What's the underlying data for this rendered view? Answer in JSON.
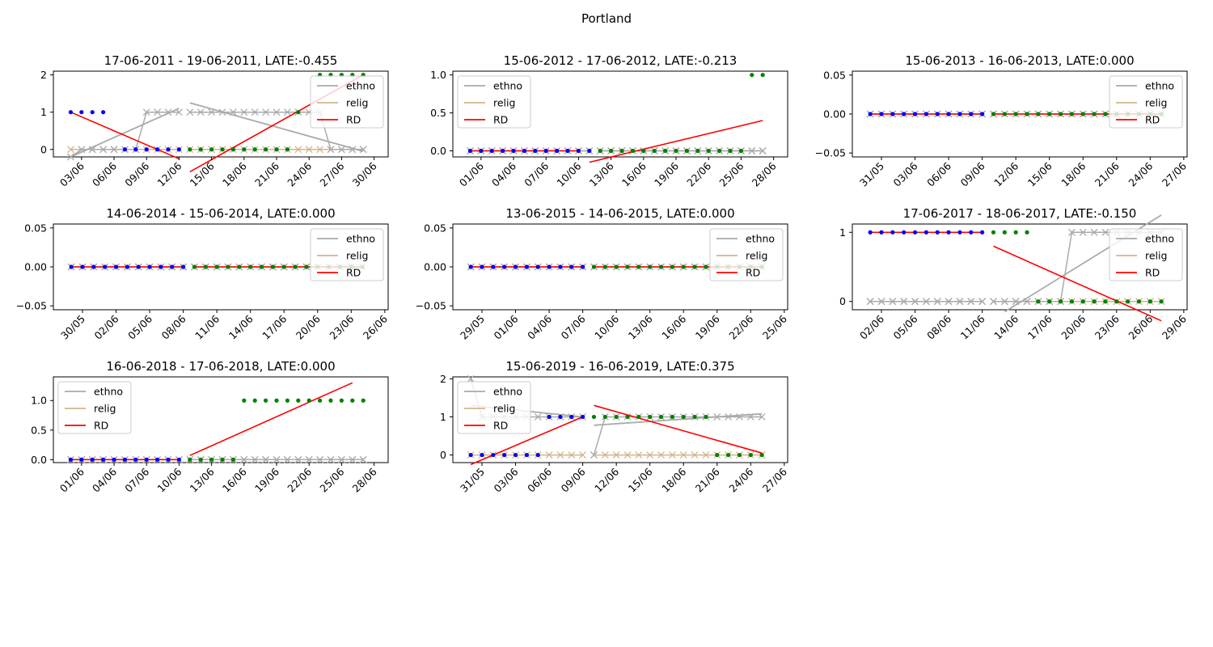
{
  "title": "Portland",
  "legend_labels": [
    "ethno",
    "relig",
    "RD"
  ],
  "colors": {
    "ethno": "#aaaaaa",
    "relig": "#d2b48c",
    "rd": "#ff0000",
    "dot_pre": "#0000ff",
    "dot_post": "#008000"
  },
  "chart_data": [
    {
      "type": "line",
      "title": "17-06-2011 - 19-06-2011, LATE:-0.455",
      "legend": "upper right",
      "start": "2011-06-02",
      "n": 28,
      "cutoff": "2011-06-13",
      "ylim": [
        -0.2,
        2.1
      ],
      "yticks": [
        0,
        1,
        2
      ],
      "yticklabels": [
        "0",
        "1",
        "2"
      ],
      "xticklabels": [
        "03/06",
        "06/06",
        "09/06",
        "12/06",
        "15/06",
        "18/06",
        "21/06",
        "24/06",
        "27/06",
        "30/06"
      ],
      "dots": [
        1,
        1,
        1,
        1,
        null,
        0,
        0,
        0,
        0,
        0,
        0,
        0,
        0,
        0,
        0,
        0,
        0,
        0,
        0,
        0,
        0,
        1,
        null,
        2,
        2,
        2,
        2,
        2
      ],
      "ethno": [
        -0.2,
        0,
        0,
        0,
        0,
        0,
        0,
        1,
        1,
        1,
        1,
        1,
        1,
        1,
        1,
        1,
        1,
        1,
        1,
        1,
        1,
        1,
        1,
        1,
        0,
        0,
        0,
        0
      ],
      "relig": [
        0,
        0,
        0,
        0,
        0,
        0,
        0,
        0,
        0,
        0,
        0,
        0,
        0,
        0,
        0,
        0,
        0,
        0,
        0,
        0,
        0,
        0,
        0,
        0,
        0,
        0,
        0,
        0
      ],
      "ethno_fit": [
        [
          0,
          -0.2
        ],
        [
          10,
          1.1
        ],
        [
          11,
          1.25
        ],
        [
          27,
          -0.05
        ]
      ],
      "rd_fit": [
        [
          0,
          1.0
        ],
        [
          10,
          -0.25
        ],
        [
          11,
          -0.6
        ],
        [
          27,
          2.0
        ]
      ]
    },
    {
      "type": "line",
      "title": "15-06-2012 - 17-06-2012, LATE:-0.213",
      "legend": "upper left",
      "start": "2012-05-30",
      "n": 28,
      "cutoff": "2012-06-11",
      "ylim": [
        -0.08,
        1.05
      ],
      "yticks": [
        0,
        0.5,
        1
      ],
      "yticklabels": [
        "0.0",
        "0.5",
        "1.0"
      ],
      "xticklabels": [
        "01/06",
        "04/06",
        "07/06",
        "10/06",
        "13/06",
        "16/06",
        "19/06",
        "22/06",
        "25/06",
        "28/06"
      ],
      "dots": [
        0,
        0,
        0,
        0,
        0,
        0,
        0,
        0,
        0,
        0,
        0,
        0,
        0,
        0,
        0,
        0,
        0,
        0,
        0,
        0,
        0,
        0,
        0,
        0,
        0,
        0,
        1,
        1
      ],
      "ethno": [
        0,
        0,
        0,
        0,
        0,
        0,
        0,
        0,
        0,
        0,
        0,
        0,
        0,
        0,
        0,
        0,
        0,
        0,
        0,
        0,
        0,
        0,
        0,
        0,
        0,
        0,
        0,
        0
      ],
      "relig": [
        0,
        0,
        0,
        0,
        0,
        0,
        0,
        0,
        0,
        0,
        0,
        0,
        0,
        0,
        0,
        0,
        0,
        0,
        0,
        0,
        0,
        0,
        0,
        0,
        0,
        0,
        0,
        0
      ],
      "rd_fit": [
        [
          0,
          0
        ],
        [
          10,
          0
        ],
        [
          11,
          -0.15
        ],
        [
          27,
          0.4
        ]
      ]
    },
    {
      "type": "line",
      "title": "15-06-2013 - 16-06-2013, LATE:0.000",
      "legend": "upper right",
      "start": "2013-05-31",
      "n": 27,
      "cutoff": "2013-06-11",
      "ylim": [
        -0.055,
        0.055
      ],
      "yticks": [
        -0.05,
        0,
        0.05
      ],
      "yticklabels": [
        "−0.05",
        "0.00",
        "0.05"
      ],
      "xticklabels": [
        "31/05",
        "03/06",
        "06/06",
        "09/06",
        "12/06",
        "15/06",
        "18/06",
        "21/06",
        "24/06",
        "27/06"
      ],
      "dots": [
        0,
        0,
        0,
        0,
        0,
        0,
        0,
        0,
        0,
        0,
        0,
        0,
        0,
        0,
        0,
        0,
        0,
        0,
        0,
        0,
        0,
        0,
        0,
        0,
        0,
        0,
        0
      ],
      "ethno": [
        0,
        0,
        0,
        0,
        0,
        0,
        0,
        0,
        0,
        0,
        0,
        0,
        0,
        0,
        0,
        0,
        0,
        0,
        0,
        0,
        0,
        0,
        0,
        0,
        0,
        0,
        0
      ],
      "relig": [
        0,
        0,
        0,
        0,
        0,
        0,
        0,
        0,
        0,
        0,
        0,
        0,
        0,
        0,
        0,
        0,
        0,
        0,
        0,
        0,
        0,
        0,
        0,
        0,
        0,
        0,
        0
      ],
      "rd_fit": [
        [
          0,
          0
        ],
        [
          10,
          0
        ],
        [
          11,
          0
        ],
        [
          26,
          0
        ]
      ]
    },
    {
      "type": "line",
      "title": "14-06-2014 - 15-06-2014, LATE:0.000",
      "legend": "upper right",
      "start": "2014-05-30",
      "n": 27,
      "cutoff": "2014-06-10",
      "ylim": [
        -0.055,
        0.055
      ],
      "yticks": [
        -0.05,
        0,
        0.05
      ],
      "yticklabels": [
        "−0.05",
        "0.00",
        "0.05"
      ],
      "xticklabels": [
        "30/05",
        "02/06",
        "05/06",
        "08/06",
        "11/06",
        "14/06",
        "17/06",
        "20/06",
        "23/06",
        "26/06"
      ],
      "dots": [
        0,
        0,
        0,
        0,
        0,
        0,
        0,
        0,
        0,
        0,
        0,
        0,
        0,
        0,
        0,
        0,
        0,
        0,
        0,
        0,
        0,
        0,
        0,
        0,
        0,
        0,
        0
      ],
      "ethno": [
        0,
        0,
        0,
        0,
        0,
        0,
        0,
        0,
        0,
        0,
        0,
        0,
        0,
        0,
        0,
        0,
        0,
        0,
        0,
        0,
        0,
        0,
        0,
        0,
        0,
        0,
        0
      ],
      "relig": [
        0,
        0,
        0,
        0,
        0,
        0,
        0,
        0,
        0,
        0,
        0,
        0,
        0,
        0,
        0,
        0,
        0,
        0,
        0,
        0,
        0,
        0,
        0,
        0,
        0,
        0,
        0
      ],
      "rd_fit": [
        [
          0,
          0
        ],
        [
          10,
          0
        ],
        [
          11,
          0
        ],
        [
          26,
          0
        ]
      ]
    },
    {
      "type": "line",
      "title": "13-06-2015 - 14-06-2015, LATE:0.000",
      "legend": "upper right",
      "start": "2015-05-29",
      "n": 27,
      "cutoff": "2015-06-09",
      "ylim": [
        -0.055,
        0.055
      ],
      "yticks": [
        -0.05,
        0,
        0.05
      ],
      "yticklabels": [
        "−0.05",
        "0.00",
        "0.05"
      ],
      "xticklabels": [
        "29/05",
        "01/06",
        "04/06",
        "07/06",
        "10/06",
        "13/06",
        "16/06",
        "19/06",
        "22/06",
        "25/06"
      ],
      "dots": [
        0,
        0,
        0,
        0,
        0,
        0,
        0,
        0,
        0,
        0,
        0,
        0,
        0,
        0,
        0,
        0,
        0,
        0,
        0,
        0,
        0,
        0,
        0,
        0,
        0,
        0,
        0
      ],
      "ethno": [
        0,
        0,
        0,
        0,
        0,
        0,
        0,
        0,
        0,
        0,
        0,
        0,
        0,
        0,
        0,
        0,
        0,
        0,
        0,
        0,
        0,
        0,
        0,
        0,
        0,
        0,
        0
      ],
      "relig": [
        0,
        0,
        0,
        0,
        0,
        0,
        0,
        0,
        0,
        0,
        0,
        0,
        0,
        0,
        0,
        0,
        0,
        0,
        0,
        0,
        0,
        0,
        0,
        0,
        0,
        0,
        0
      ],
      "rd_fit": [
        [
          0,
          0
        ],
        [
          10,
          0
        ],
        [
          11,
          0
        ],
        [
          26,
          0
        ]
      ]
    },
    {
      "type": "line",
      "title": "17-06-2017 - 18-06-2017, LATE:-0.150",
      "legend": "upper right",
      "start": "2017-06-02",
      "n": 27,
      "cutoff": "2017-06-13",
      "ylim": [
        -0.12,
        1.12
      ],
      "yticks": [
        0,
        1
      ],
      "yticklabels": [
        "0",
        "1"
      ],
      "xticklabels": [
        "02/06",
        "05/06",
        "08/06",
        "11/06",
        "14/06",
        "17/06",
        "20/06",
        "23/06",
        "26/06",
        "29/06"
      ],
      "dots": [
        1,
        1,
        1,
        1,
        1,
        1,
        1,
        1,
        1,
        1,
        1,
        1,
        1,
        1,
        1,
        0,
        0,
        0,
        0,
        0,
        0,
        0,
        0,
        0,
        0,
        0,
        0
      ],
      "ethno": [
        0,
        0,
        0,
        0,
        0,
        0,
        0,
        0,
        0,
        0,
        0,
        0,
        0,
        0,
        0,
        0,
        0,
        0,
        1,
        1,
        1,
        1,
        1,
        1,
        1,
        1,
        1
      ],
      "relig": [
        0,
        0,
        0,
        0,
        0,
        0,
        0,
        0,
        0,
        0,
        0,
        0,
        0,
        0,
        0,
        0,
        0,
        0,
        0,
        0,
        0,
        0,
        0,
        0,
        0,
        0,
        0
      ],
      "ethno_fit": [
        [
          12,
          -0.15
        ],
        [
          26,
          1.25
        ]
      ],
      "rd_fit": [
        [
          0,
          1
        ],
        [
          10,
          1
        ],
        [
          11,
          0.8
        ],
        [
          26,
          -0.28
        ]
      ]
    },
    {
      "type": "line",
      "title": "16-06-2018 - 17-06-2018, LATE:0.000",
      "legend": "upper left",
      "start": "2018-06-01",
      "n": 28,
      "cutoff": "2018-06-12",
      "ylim": [
        -0.05,
        1.4
      ],
      "yticks": [
        0,
        0.5,
        1
      ],
      "yticklabels": [
        "0.0",
        "0.5",
        "1.0"
      ],
      "xticklabels": [
        "01/06",
        "04/06",
        "07/06",
        "10/06",
        "13/06",
        "16/06",
        "19/06",
        "22/06",
        "25/06",
        "28/06"
      ],
      "dots": [
        0,
        0,
        0,
        0,
        0,
        0,
        0,
        0,
        0,
        0,
        0,
        0,
        0,
        0,
        0,
        0,
        1,
        1,
        1,
        1,
        1,
        1,
        1,
        1,
        1,
        1,
        1,
        1
      ],
      "ethno": [
        0,
        0,
        0,
        0,
        0,
        0,
        0,
        0,
        0,
        0,
        0,
        0,
        0,
        0,
        0,
        0,
        0,
        0,
        0,
        0,
        0,
        0,
        0,
        0,
        0,
        0,
        0,
        0
      ],
      "relig": [
        0,
        0,
        0,
        0,
        0,
        0,
        0,
        0,
        0,
        0,
        0,
        0,
        0,
        0,
        0,
        0,
        0,
        0,
        0,
        0,
        0,
        0,
        0,
        0,
        0,
        0,
        0,
        0
      ],
      "rd_fit": [
        [
          0,
          0
        ],
        [
          10,
          0
        ],
        [
          11,
          0.07
        ],
        [
          26,
          1.3
        ]
      ]
    },
    {
      "type": "line",
      "title": "15-06-2019 - 16-06-2019, LATE:0.375",
      "legend": "upper left",
      "start": "2019-05-31",
      "n": 27,
      "cutoff": "2019-06-11",
      "ylim": [
        -0.2,
        2.05
      ],
      "yticks": [
        0,
        1,
        2
      ],
      "yticklabels": [
        "0",
        "1",
        "2"
      ],
      "xticklabels": [
        "31/05",
        "03/06",
        "06/06",
        "09/06",
        "12/06",
        "15/06",
        "18/06",
        "21/06",
        "24/06",
        "27/06"
      ],
      "dots": [
        0,
        0,
        0,
        0,
        0,
        0,
        0,
        1,
        1,
        1,
        1,
        1,
        1,
        1,
        1,
        1,
        1,
        1,
        1,
        1,
        1,
        1,
        0,
        0,
        0,
        0,
        0
      ],
      "ethno": [
        2,
        1,
        1,
        1,
        1,
        1,
        1,
        1,
        1,
        1,
        1,
        0,
        1,
        1,
        1,
        1,
        1,
        1,
        1,
        1,
        1,
        1,
        1,
        1,
        1,
        1,
        1
      ],
      "relig": [
        0,
        0,
        0,
        0,
        0,
        0,
        0,
        0,
        0,
        0,
        0,
        0,
        0,
        0,
        0,
        0,
        0,
        0,
        0,
        0,
        0,
        0,
        0,
        0,
        0,
        0,
        0
      ],
      "ethno_fit": [
        [
          0,
          1.3
        ],
        [
          10,
          1.0
        ],
        [
          11,
          0.78
        ],
        [
          26,
          1.08
        ]
      ],
      "rd_fit": [
        [
          0,
          -0.25
        ],
        [
          10,
          1.0
        ],
        [
          11,
          1.3
        ],
        [
          26,
          0.05
        ]
      ]
    }
  ]
}
